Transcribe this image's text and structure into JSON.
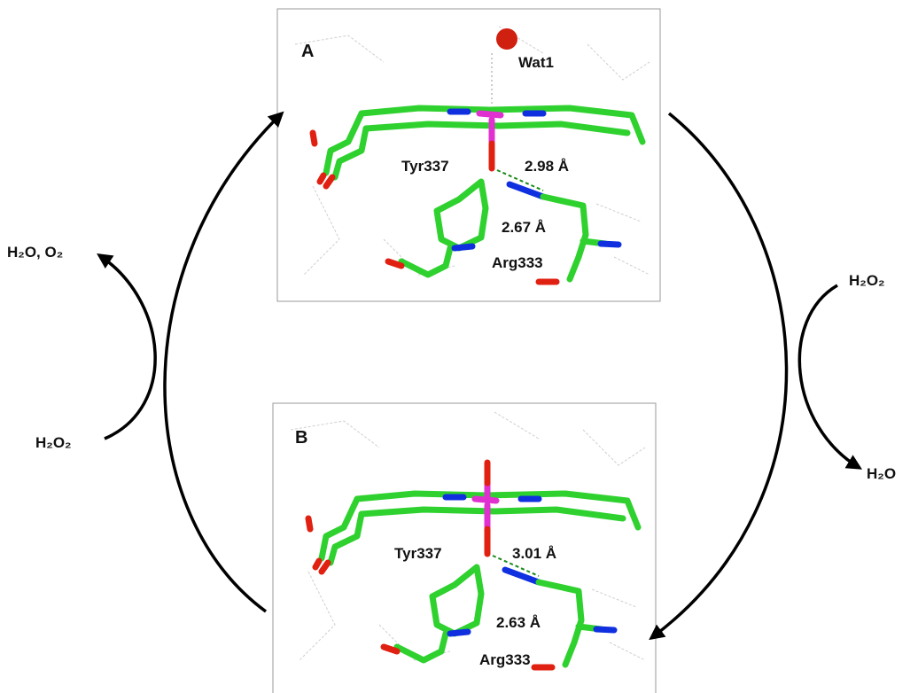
{
  "cycle": {
    "left": {
      "product": "H₂O, O₂",
      "substrate": "H₂O₂"
    },
    "right": {
      "substrate": "H₂O₂",
      "product": "H₂O"
    }
  },
  "panels": [
    {
      "label": "A",
      "water": "Wat1",
      "tyr": "Tyr337",
      "distance_1": "2.98 Å",
      "distance_2": "2.67 Å",
      "arg": "Arg333"
    },
    {
      "label": "B",
      "tyr": "Tyr337",
      "distance_1": "3.01 Å",
      "distance_2": "2.63 Å",
      "arg": "Arg333"
    }
  ]
}
